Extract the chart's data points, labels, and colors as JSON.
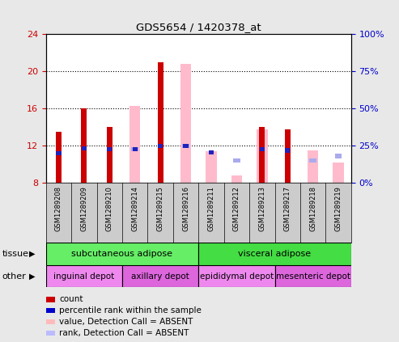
{
  "title": "GDS5654 / 1420378_at",
  "samples": [
    "GSM1289208",
    "GSM1289209",
    "GSM1289210",
    "GSM1289214",
    "GSM1289215",
    "GSM1289216",
    "GSM1289211",
    "GSM1289212",
    "GSM1289213",
    "GSM1289217",
    "GSM1289218",
    "GSM1289219"
  ],
  "ylim_left": [
    8,
    24
  ],
  "ylim_right": [
    0,
    100
  ],
  "yticks_left": [
    8,
    12,
    16,
    20,
    24
  ],
  "yticks_right": [
    0,
    25,
    50,
    75,
    100
  ],
  "ytick_labels_left": [
    "8",
    "12",
    "16",
    "20",
    "24"
  ],
  "ytick_labels_right": [
    "0%",
    "25%",
    "50%",
    "75%",
    "100%"
  ],
  "red_bars": [
    13.5,
    16.0,
    14.0,
    null,
    21.0,
    null,
    null,
    null,
    14.0,
    13.8,
    null,
    null
  ],
  "blue_squares": [
    11.2,
    11.7,
    11.6,
    11.6,
    12.0,
    12.0,
    11.3,
    null,
    11.6,
    11.5,
    null,
    null
  ],
  "pink_bars": [
    null,
    null,
    null,
    16.3,
    null,
    20.8,
    11.4,
    8.8,
    13.8,
    null,
    11.5,
    10.2
  ],
  "lavender_squares": [
    null,
    null,
    null,
    11.6,
    null,
    12.0,
    null,
    10.4,
    null,
    null,
    10.4,
    10.9
  ],
  "tissue_groups": [
    {
      "label": "subcutaneous adipose",
      "start": 0,
      "end": 6,
      "color": "#66ee66"
    },
    {
      "label": "visceral adipose",
      "start": 6,
      "end": 12,
      "color": "#44dd44"
    }
  ],
  "other_groups": [
    {
      "label": "inguinal depot",
      "start": 0,
      "end": 3,
      "color": "#ee88ee"
    },
    {
      "label": "axillary depot",
      "start": 3,
      "end": 6,
      "color": "#dd66dd"
    },
    {
      "label": "epididymal depot",
      "start": 6,
      "end": 9,
      "color": "#ee88ee"
    },
    {
      "label": "mesenteric depot",
      "start": 9,
      "end": 12,
      "color": "#dd66dd"
    }
  ],
  "legend_items": [
    {
      "color": "#cc0000",
      "label": "count"
    },
    {
      "color": "#0000cc",
      "label": "percentile rank within the sample"
    },
    {
      "color": "#ffbbbb",
      "label": "value, Detection Call = ABSENT"
    },
    {
      "color": "#bbbbff",
      "label": "rank, Detection Call = ABSENT"
    }
  ],
  "bar_width": 0.5,
  "bg_color": "#e8e8e8",
  "plot_bg": "#ffffff",
  "xtick_bg": "#cccccc"
}
